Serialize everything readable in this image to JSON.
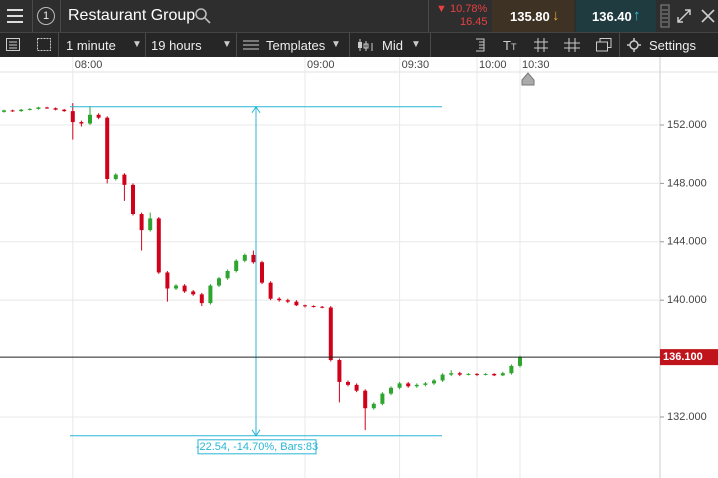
{
  "toolbar": {
    "badge": "1",
    "instrument": "Restaurant Group",
    "change_pct": "10.78%",
    "change_abs": "16.45",
    "sell": "135.80",
    "buy": "136.40"
  },
  "controls": {
    "interval": "1 minute",
    "range": "19 hours",
    "templates": "Templates",
    "price_type": "Mid",
    "settings": "Settings"
  },
  "chart_data": {
    "type": "candlestick",
    "categories": [
      null,
      null,
      null,
      null,
      null,
      null,
      null,
      null,
      "08:00",
      null,
      null,
      null,
      null,
      null,
      null,
      null,
      null,
      null,
      null,
      null,
      null,
      null,
      null,
      null,
      null,
      null,
      null,
      null,
      null,
      null,
      null,
      null,
      null,
      null,
      null,
      "09:00",
      null,
      null,
      null,
      null,
      null,
      null,
      null,
      null,
      null,
      null,
      "09:30",
      null,
      null,
      null,
      null,
      null,
      null,
      null,
      null,
      "10:00",
      null,
      null,
      null,
      null,
      "10:30"
    ],
    "open": [
      152.9,
      153.0,
      152.95,
      153.05,
      153.1,
      153.2,
      153.15,
      153.05,
      152.95,
      152.2,
      152.1,
      152.7,
      152.5,
      148.3,
      148.6,
      147.9,
      145.9,
      144.8,
      145.6,
      141.9,
      140.8,
      141.0,
      140.6,
      140.4,
      139.8,
      141.0,
      141.5,
      142.0,
      142.7,
      143.1,
      142.6,
      141.2,
      140.1,
      140.0,
      139.9,
      139.65,
      139.6,
      139.55,
      139.5,
      135.9,
      134.4,
      134.2,
      133.8,
      132.6,
      132.9,
      133.6,
      134.0,
      134.3,
      134.1,
      134.2,
      134.3,
      134.5,
      134.9,
      135.0,
      134.9,
      134.95,
      134.9,
      134.95,
      134.85,
      135.0,
      135.5
    ],
    "high": [
      153.05,
      153.05,
      153.1,
      153.15,
      153.25,
      153.25,
      153.2,
      153.1,
      153.5,
      152.3,
      153.3,
      152.8,
      152.6,
      148.7,
      148.7,
      148.0,
      146.0,
      146.0,
      145.7,
      142.0,
      141.1,
      141.1,
      140.7,
      140.5,
      141.1,
      141.6,
      142.1,
      142.8,
      143.2,
      143.4,
      142.7,
      141.3,
      140.2,
      140.1,
      140.0,
      139.7,
      139.65,
      139.6,
      139.6,
      136.0,
      134.5,
      134.3,
      133.9,
      133.0,
      133.7,
      134.1,
      134.4,
      134.4,
      134.3,
      134.4,
      134.6,
      135.0,
      135.2,
      135.1,
      135.0,
      135.0,
      135.0,
      135.0,
      135.1,
      135.6,
      136.2
    ],
    "low": [
      152.85,
      152.9,
      152.9,
      153.0,
      153.05,
      153.1,
      153.0,
      152.9,
      151.0,
      151.9,
      152.0,
      152.4,
      148.0,
      148.2,
      146.8,
      145.8,
      143.4,
      144.7,
      141.8,
      139.9,
      140.7,
      140.5,
      140.3,
      139.6,
      139.7,
      140.9,
      141.4,
      141.9,
      142.6,
      142.5,
      141.1,
      140.0,
      139.9,
      139.8,
      139.6,
      139.5,
      139.5,
      139.45,
      135.8,
      133.0,
      134.1,
      133.7,
      131.1,
      132.5,
      132.8,
      133.5,
      133.9,
      134.0,
      134.0,
      134.1,
      134.2,
      134.4,
      134.8,
      134.8,
      134.85,
      134.8,
      134.85,
      134.8,
      134.8,
      134.9,
      135.4
    ],
    "close": [
      153.0,
      152.95,
      153.05,
      153.1,
      153.2,
      153.15,
      153.05,
      152.95,
      152.2,
      152.1,
      152.7,
      152.5,
      148.3,
      148.6,
      147.9,
      145.9,
      144.8,
      145.6,
      141.9,
      140.8,
      141.0,
      140.6,
      140.4,
      139.8,
      141.0,
      141.5,
      142.0,
      142.7,
      143.1,
      142.6,
      141.2,
      140.1,
      140.0,
      139.9,
      139.65,
      139.6,
      139.55,
      139.5,
      135.9,
      134.4,
      134.2,
      133.8,
      132.6,
      132.9,
      133.6,
      134.0,
      134.3,
      134.1,
      134.2,
      134.3,
      134.5,
      134.9,
      135.0,
      134.9,
      134.95,
      134.9,
      134.95,
      134.85,
      135.0,
      135.5,
      136.1
    ],
    "up_color": "#2ea52e",
    "down_color": "#d0021b",
    "ylim": [
      127.82,
      155.63
    ],
    "yticks": [
      {
        "value": 132,
        "label": "132.000"
      },
      {
        "value": 140,
        "label": "140.000"
      },
      {
        "value": 144,
        "label": "144.000"
      },
      {
        "value": 148,
        "label": "148.000"
      },
      {
        "value": 152,
        "label": "152.000"
      }
    ],
    "grid": true,
    "last_price": {
      "value": 136.1,
      "label": "136.100"
    },
    "measure": {
      "top": 153.25,
      "bottom": 130.71,
      "label": "-22.54, -14.70%, Bars:83"
    }
  }
}
